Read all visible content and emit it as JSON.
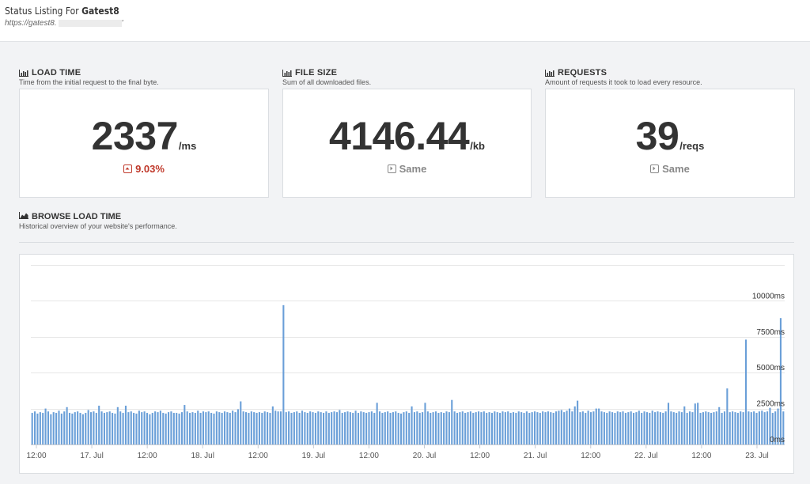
{
  "header": {
    "title_prefix": "Status Listing For ",
    "title_name": "Gatest8",
    "url": "https://gatest8."
  },
  "stats": [
    {
      "heading": "LOAD TIME",
      "description": "Time from the initial request to the final byte.",
      "value": "2337",
      "unit": "/ms",
      "change": "9.03%",
      "change_type": "up",
      "change_color": "#c0392b"
    },
    {
      "heading": "FILE SIZE",
      "description": "Sum of all downloaded files.",
      "value": "4146.44",
      "unit": "/kb",
      "change": "Same",
      "change_type": "same",
      "change_color": "#888888"
    },
    {
      "heading": "REQUESTS",
      "description": "Amount of requests it took to load every resource.",
      "value": "39",
      "unit": "/reqs",
      "change": "Same",
      "change_type": "same",
      "change_color": "#888888"
    }
  ],
  "browse": {
    "heading": "BROWSE LOAD TIME",
    "description": "Historical overview of your website's performance."
  },
  "colors": {
    "bar": "#6a9fd8",
    "grid": "#e6e6e6",
    "text": "#333333"
  },
  "chart_data": {
    "type": "bar",
    "xlabel": "",
    "ylabel": "",
    "ylim": [
      0,
      12500
    ],
    "y_ticks": [
      "0ms",
      "2500ms",
      "5000ms",
      "7500ms",
      "10000ms"
    ],
    "y_tick_values": [
      0,
      2500,
      5000,
      7500,
      10000
    ],
    "x_ticks": [
      "12:00",
      "17. Jul",
      "12:00",
      "18. Jul",
      "12:00",
      "19. Jul",
      "12:00",
      "20. Jul",
      "12:00",
      "21. Jul",
      "12:00",
      "22. Jul",
      "12:00",
      "23. Jul"
    ],
    "x_tick_positions": [
      0.5,
      1.0,
      1.5,
      2.0,
      2.5,
      3.0,
      3.5,
      4.0,
      4.5,
      5.0,
      5.5,
      6.0,
      6.5,
      7.0
    ],
    "x_range": [
      0.45,
      7.25
    ],
    "bar_values": [
      2200,
      2300,
      2150,
      2250,
      2200,
      2500,
      2300,
      2100,
      2250,
      2200,
      2350,
      2150,
      2300,
      2600,
      2200,
      2150,
      2250,
      2300,
      2200,
      2100,
      2200,
      2400,
      2250,
      2300,
      2200,
      2700,
      2300,
      2200,
      2250,
      2300,
      2200,
      2150,
      2600,
      2300,
      2200,
      2700,
      2250,
      2300,
      2200,
      2150,
      2350,
      2250,
      2300,
      2200,
      2100,
      2200,
      2300,
      2250,
      2350,
      2200,
      2150,
      2250,
      2300,
      2200,
      2200,
      2150,
      2250,
      2750,
      2300,
      2200,
      2250,
      2200,
      2350,
      2200,
      2300,
      2250,
      2300,
      2200,
      2150,
      2300,
      2250,
      2200,
      2300,
      2250,
      2200,
      2350,
      2250,
      2450,
      3000,
      2300,
      2250,
      2200,
      2300,
      2250,
      2200,
      2250,
      2200,
      2300,
      2250,
      2200,
      2650,
      2350,
      2300,
      2300,
      9700,
      2250,
      2300,
      2200,
      2250,
      2300,
      2200,
      2350,
      2250,
      2200,
      2300,
      2250,
      2200,
      2300,
      2250,
      2200,
      2300,
      2200,
      2250,
      2300,
      2250,
      2400,
      2200,
      2250,
      2300,
      2250,
      2200,
      2350,
      2200,
      2300,
      2250,
      2200,
      2250,
      2300,
      2200,
      2900,
      2300,
      2200,
      2250,
      2300,
      2200,
      2250,
      2300,
      2200,
      2150,
      2250,
      2300,
      2200,
      2650,
      2250,
      2300,
      2200,
      2250,
      2900,
      2300,
      2200,
      2250,
      2300,
      2200,
      2250,
      2200,
      2300,
      2250,
      3100,
      2300,
      2200,
      2250,
      2300,
      2200,
      2250,
      2300,
      2200,
      2250,
      2300,
      2250,
      2300,
      2200,
      2250,
      2200,
      2300,
      2250,
      2200,
      2300,
      2250,
      2300,
      2200,
      2250,
      2200,
      2300,
      2250,
      2200,
      2300,
      2200,
      2250,
      2300,
      2250,
      2200,
      2300,
      2250,
      2300,
      2250,
      2200,
      2300,
      2350,
      2400,
      2250,
      2350,
      2500,
      2300,
      2650,
      3050,
      2250,
      2300,
      2200,
      2350,
      2250,
      2300,
      2500,
      2500,
      2300,
      2250,
      2200,
      2300,
      2250,
      2200,
      2300,
      2250,
      2300,
      2200,
      2250,
      2300,
      2200,
      2250,
      2350,
      2200,
      2300,
      2250,
      2200,
      2350,
      2250,
      2300,
      2250,
      2200,
      2300,
      2900,
      2300,
      2250,
      2200,
      2300,
      2250,
      2650,
      2200,
      2300,
      2250,
      2850,
      2900,
      2200,
      2250,
      2300,
      2250,
      2200,
      2250,
      2300,
      2600,
      2200,
      2300,
      3900,
      2250,
      2300,
      2250,
      2200,
      2300,
      2250,
      7300,
      2300,
      2250,
      2300,
      2200,
      2300,
      2350,
      2250,
      2300,
      2550,
      2200,
      2300,
      2500,
      8800,
      2300
    ]
  }
}
